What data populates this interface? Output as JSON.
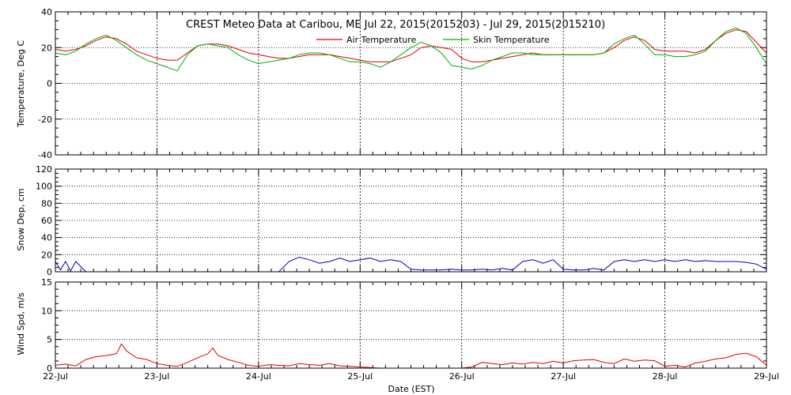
{
  "chart_data": [
    {
      "type": "line",
      "title": "CREST Meteo Data at Caribou, ME   Jul 22, 2015(2015203) - Jul 29, 2015(2015210)",
      "ylabel": "Temperature, Deg C",
      "ylim": [
        -40,
        40
      ],
      "yticks": [
        -40,
        -20,
        0,
        20,
        40
      ],
      "xlim": [
        0,
        7
      ],
      "grid": true,
      "legend_position": "top-center",
      "series": [
        {
          "name": "Air Temperature",
          "color": "#e00000",
          "x": [
            0.0,
            0.1,
            0.2,
            0.3,
            0.4,
            0.5,
            0.6,
            0.7,
            0.8,
            0.9,
            1.0,
            1.1,
            1.2,
            1.3,
            1.4,
            1.5,
            1.6,
            1.7,
            1.8,
            1.9,
            2.0,
            2.1,
            2.2,
            2.3,
            2.4,
            2.5,
            2.6,
            2.7,
            2.8,
            2.9,
            3.0,
            3.1,
            3.2,
            3.3,
            3.4,
            3.5,
            3.6,
            3.7,
            3.8,
            3.9,
            4.0,
            4.1,
            4.2,
            4.3,
            4.4,
            4.5,
            4.6,
            4.7,
            4.8,
            4.9,
            5.0,
            5.1,
            5.2,
            5.3,
            5.4,
            5.5,
            5.6,
            5.7,
            5.8,
            5.9,
            6.0,
            6.1,
            6.2,
            6.3,
            6.4,
            6.5,
            6.6,
            6.7,
            6.8,
            6.9,
            7.0
          ],
          "values": [
            19,
            18,
            19,
            21,
            24,
            26,
            25,
            22,
            18,
            16,
            14,
            13,
            13,
            17,
            21,
            22,
            22,
            21,
            19,
            17,
            16,
            15,
            14,
            14,
            15,
            16,
            16,
            16,
            15,
            14,
            13,
            12,
            12,
            12,
            14,
            16,
            20,
            21,
            20,
            19,
            14,
            12,
            12,
            13,
            14,
            15,
            16,
            17,
            16,
            16,
            16,
            16,
            16,
            16,
            17,
            20,
            24,
            26,
            24,
            19,
            18,
            18,
            18,
            17,
            19,
            24,
            28,
            30,
            29,
            23,
            17
          ]
        },
        {
          "name": "Skin Temperature",
          "color": "#00b000",
          "x": [
            0.0,
            0.1,
            0.2,
            0.3,
            0.4,
            0.5,
            0.6,
            0.7,
            0.8,
            0.9,
            1.0,
            1.1,
            1.2,
            1.3,
            1.4,
            1.5,
            1.6,
            1.7,
            1.8,
            1.9,
            2.0,
            2.1,
            2.2,
            2.3,
            2.4,
            2.5,
            2.6,
            2.7,
            2.8,
            2.9,
            3.0,
            3.1,
            3.2,
            3.3,
            3.4,
            3.5,
            3.6,
            3.7,
            3.8,
            3.9,
            4.0,
            4.1,
            4.2,
            4.3,
            4.4,
            4.5,
            4.6,
            4.7,
            4.8,
            4.9,
            5.0,
            5.1,
            5.2,
            5.3,
            5.4,
            5.5,
            5.6,
            5.7,
            5.8,
            5.9,
            6.0,
            6.1,
            6.2,
            6.3,
            6.4,
            6.5,
            6.6,
            6.7,
            6.8,
            6.9,
            7.0
          ],
          "values": [
            17,
            16,
            18,
            22,
            25,
            27,
            24,
            20,
            16,
            13,
            11,
            9,
            7,
            16,
            21,
            22,
            21,
            20,
            16,
            13,
            11,
            12,
            13,
            14,
            16,
            17,
            17,
            16,
            14,
            12,
            12,
            11,
            9,
            12,
            16,
            20,
            23,
            21,
            17,
            10,
            9,
            8,
            10,
            13,
            15,
            17,
            17,
            16,
            16,
            16,
            16,
            16,
            16,
            16,
            17,
            22,
            25,
            27,
            22,
            16,
            16,
            15,
            15,
            16,
            18,
            24,
            29,
            31,
            28,
            20,
            11
          ]
        }
      ]
    },
    {
      "type": "line",
      "ylabel": "Snow Dep, cm",
      "ylim": [
        0,
        120
      ],
      "yticks": [
        0,
        20,
        40,
        60,
        80,
        100,
        120
      ],
      "xlim": [
        0,
        7
      ],
      "grid": true,
      "series": [
        {
          "color": "#0000c0",
          "x": [
            0.0,
            0.05,
            0.1,
            0.15,
            0.2,
            0.3,
            0.5,
            1.0,
            2.0,
            2.2,
            2.3,
            2.4,
            2.5,
            2.6,
            2.7,
            2.8,
            2.9,
            3.0,
            3.1,
            3.2,
            3.3,
            3.4,
            3.5,
            3.6,
            3.7,
            3.8,
            3.9,
            4.0,
            4.1,
            4.2,
            4.3,
            4.4,
            4.5,
            4.6,
            4.7,
            4.8,
            4.9,
            5.0,
            5.1,
            5.2,
            5.3,
            5.4,
            5.5,
            5.6,
            5.7,
            5.8,
            5.9,
            6.0,
            6.1,
            6.2,
            6.3,
            6.4,
            6.5,
            6.6,
            6.7,
            6.8,
            6.9,
            7.0
          ],
          "values": [
            12,
            2,
            12,
            1,
            12,
            0,
            0,
            0,
            0,
            0,
            12,
            17,
            14,
            10,
            12,
            16,
            12,
            14,
            16,
            12,
            14,
            12,
            3,
            2,
            2,
            2,
            3,
            2,
            2,
            3,
            2,
            4,
            2,
            12,
            14,
            10,
            14,
            3,
            2,
            2,
            4,
            2,
            12,
            14,
            12,
            14,
            12,
            14,
            12,
            14,
            12,
            13,
            12,
            12,
            12,
            11,
            9,
            3
          ]
        }
      ]
    },
    {
      "type": "line",
      "ylabel": "Wind Spd, m/s",
      "xlabel": "Date (EST)",
      "ylim": [
        0,
        15
      ],
      "yticks": [
        0,
        5,
        10,
        15
      ],
      "xlim": [
        0,
        7
      ],
      "grid": true,
      "categories": [
        "22-Jul",
        "23-Jul",
        "24-Jul",
        "25-Jul",
        "26-Jul",
        "27-Jul",
        "28-Jul",
        "29-Jul"
      ],
      "series": [
        {
          "color": "#e00000",
          "x": [
            0.0,
            0.1,
            0.2,
            0.3,
            0.4,
            0.5,
            0.6,
            0.65,
            0.7,
            0.8,
            0.9,
            1.0,
            1.1,
            1.2,
            1.3,
            1.4,
            1.5,
            1.55,
            1.6,
            1.7,
            1.8,
            1.9,
            2.0,
            2.1,
            2.2,
            2.3,
            2.4,
            2.5,
            2.6,
            2.7,
            2.8,
            2.9,
            3.0,
            3.1,
            3.2,
            3.3,
            3.4,
            3.5,
            3.6,
            3.7,
            3.8,
            3.9,
            4.0,
            4.1,
            4.2,
            4.3,
            4.4,
            4.5,
            4.6,
            4.7,
            4.8,
            4.9,
            5.0,
            5.1,
            5.2,
            5.3,
            5.4,
            5.5,
            5.6,
            5.7,
            5.8,
            5.9,
            6.0,
            6.1,
            6.2,
            6.3,
            6.4,
            6.5,
            6.6,
            6.7,
            6.8,
            6.9,
            7.0
          ],
          "values": [
            0.5,
            0.7,
            0.4,
            1.5,
            2.0,
            2.2,
            2.5,
            4.2,
            3.0,
            1.8,
            1.5,
            0.8,
            0.5,
            0.3,
            1.0,
            1.8,
            2.5,
            3.5,
            2.2,
            1.5,
            1.0,
            0.5,
            0.3,
            0.6,
            0.5,
            0.4,
            0.8,
            0.6,
            0.5,
            0.8,
            0.4,
            0.3,
            0.2,
            0.1,
            0.0,
            0.0,
            0.0,
            0.0,
            0.0,
            0.0,
            0.0,
            0.0,
            0.0,
            0.2,
            1.0,
            0.8,
            0.6,
            0.9,
            0.7,
            1.0,
            0.8,
            1.2,
            0.9,
            1.3,
            1.4,
            1.5,
            1.0,
            0.8,
            1.6,
            1.2,
            1.4,
            1.3,
            0.3,
            0.5,
            0.2,
            0.9,
            1.2,
            1.6,
            1.8,
            2.4,
            2.6,
            2.0,
            0.5
          ]
        }
      ]
    }
  ]
}
